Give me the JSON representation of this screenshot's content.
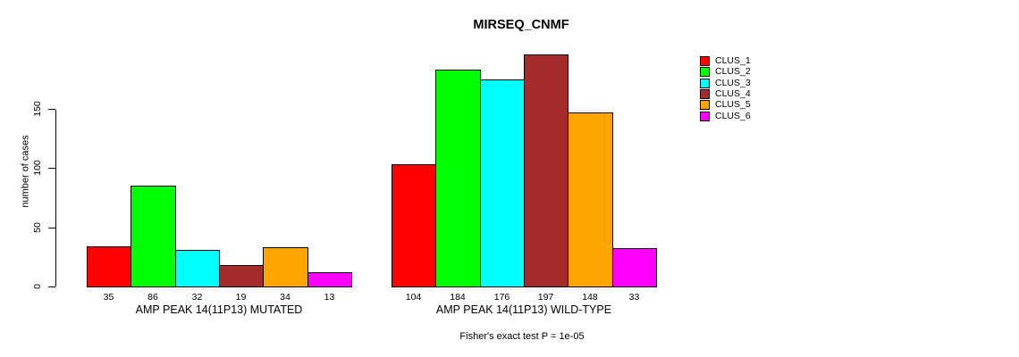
{
  "chart_data": {
    "type": "bar",
    "title": "MIRSEQ_CNMF",
    "ylabel": "number of cases",
    "footnote": "Fisher's exact test P = 1e-05",
    "ylim": [
      0,
      150
    ],
    "yticks": [
      0,
      50,
      100,
      150
    ],
    "grid": false,
    "legend_position": "right",
    "clusters": [
      {
        "label": "CLUS_1",
        "color": "#FF0000"
      },
      {
        "label": "CLUS_2",
        "color": "#00FF00"
      },
      {
        "label": "CLUS_3",
        "color": "#00FFFF"
      },
      {
        "label": "CLUS_4",
        "color": "#A52A2A"
      },
      {
        "label": "CLUS_5",
        "color": "#FFA500"
      },
      {
        "label": "CLUS_6",
        "color": "#FF00FF"
      }
    ],
    "groups": [
      {
        "label": "AMP PEAK 14(11P13) MUTATED",
        "values": [
          35,
          86,
          32,
          19,
          34,
          13
        ]
      },
      {
        "label": "AMP PEAK 14(11P13) WILD-TYPE",
        "values": [
          104,
          184,
          176,
          197,
          148,
          33
        ]
      }
    ]
  },
  "colors": {
    "background": "#FFFFFF",
    "axis": "#000000",
    "text": "#000000"
  }
}
